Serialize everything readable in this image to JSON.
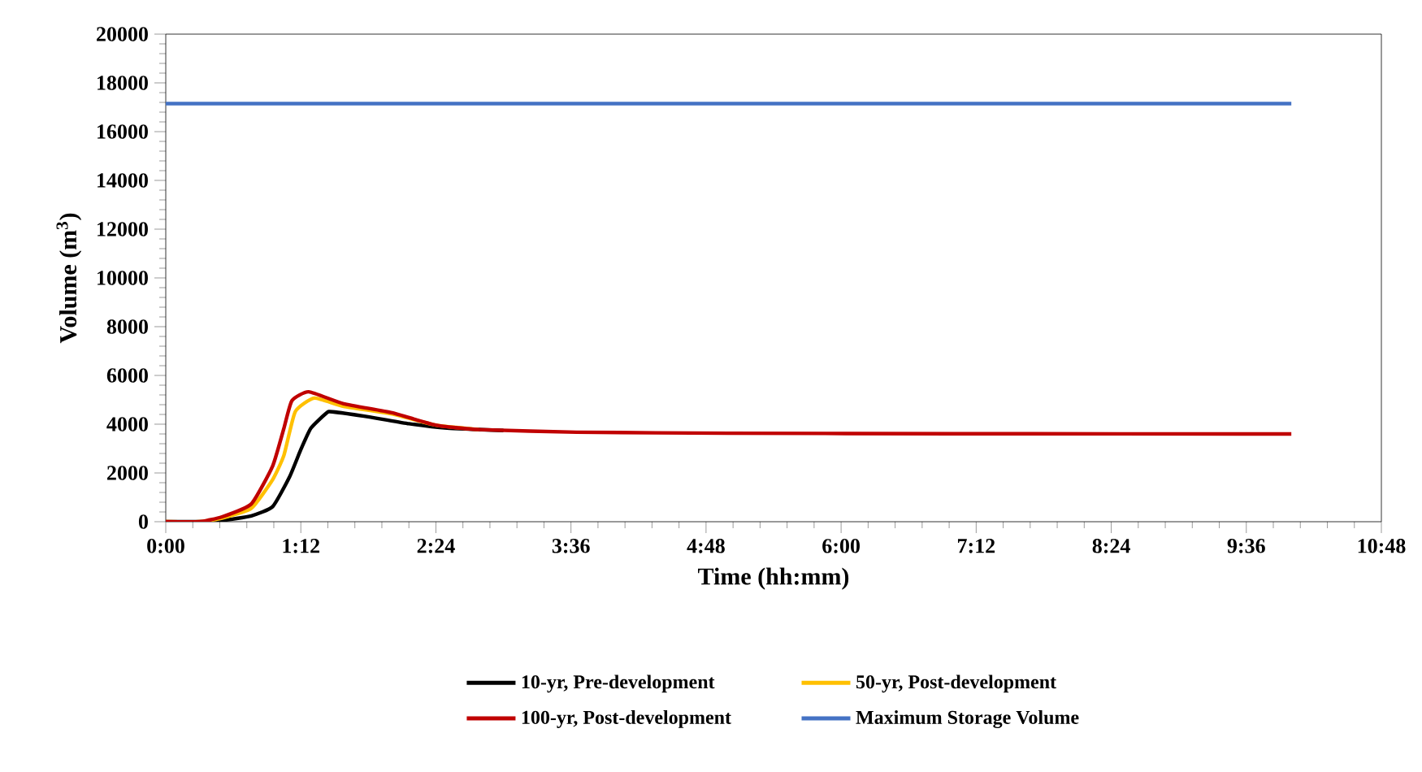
{
  "chart_data": {
    "type": "line",
    "xlabel": "Time (hh:mm)",
    "ylabel": "Volume (m$^{3}$)",
    "xlim": [
      0,
      10.8
    ],
    "ylim": [
      0,
      20000
    ],
    "xticks": [
      {
        "value": 0,
        "label": "0:00"
      },
      {
        "value": 1.2,
        "label": "1:12"
      },
      {
        "value": 2.4,
        "label": "2:24"
      },
      {
        "value": 3.6,
        "label": "3:36"
      },
      {
        "value": 4.8,
        "label": "4:48"
      },
      {
        "value": 6,
        "label": "6:00"
      },
      {
        "value": 7.2,
        "label": "7:12"
      },
      {
        "value": 8.4,
        "label": "8:24"
      },
      {
        "value": 9.6,
        "label": "9:36"
      },
      {
        "value": 10.8,
        "label": "10:48"
      }
    ],
    "yticks": [
      0,
      2000,
      4000,
      6000,
      8000,
      10000,
      12000,
      14000,
      16000,
      18000,
      20000
    ],
    "legend": "bottom",
    "grid": false,
    "marker": "none",
    "line_style": "solid",
    "series": [
      {
        "name": "10-yr, Pre-development",
        "color": "#000000",
        "x": [
          0,
          0.3,
          0.5,
          0.76,
          0.95,
          1.1,
          1.2,
          1.29,
          1.43,
          1.48,
          1.82,
          2.16,
          2.5,
          3
        ],
        "values": [
          0,
          0,
          50,
          240,
          620,
          1840,
          2960,
          3840,
          4470,
          4510,
          4290,
          4020,
          3840,
          3740
        ]
      },
      {
        "name": "50-yr, Post-development",
        "color": "#ffc000",
        "x": [
          0,
          0.3,
          0.5,
          0.76,
          0.95,
          1.05,
          1.15,
          1.32,
          1.58,
          2.01,
          2.4,
          2.78
        ],
        "values": [
          0,
          0,
          150,
          550,
          1730,
          2730,
          4510,
          5070,
          4730,
          4420,
          3960,
          3780
        ]
      },
      {
        "name": "100-yr, Post-development",
        "color": "#c00000",
        "x": [
          0,
          0.3,
          0.5,
          0.76,
          0.95,
          1.05,
          1.12,
          1.27,
          1.58,
          2.01,
          2.4,
          2.78,
          3.65,
          5,
          7,
          10
        ],
        "values": [
          0,
          0,
          200,
          730,
          2290,
          3840,
          4960,
          5330,
          4840,
          4470,
          3960,
          3780,
          3670,
          3630,
          3610,
          3600
        ]
      },
      {
        "name": "Maximum Storage Volume",
        "color": "#4472c4",
        "x": [
          0,
          10
        ],
        "values": [
          17150,
          17150
        ]
      }
    ]
  }
}
